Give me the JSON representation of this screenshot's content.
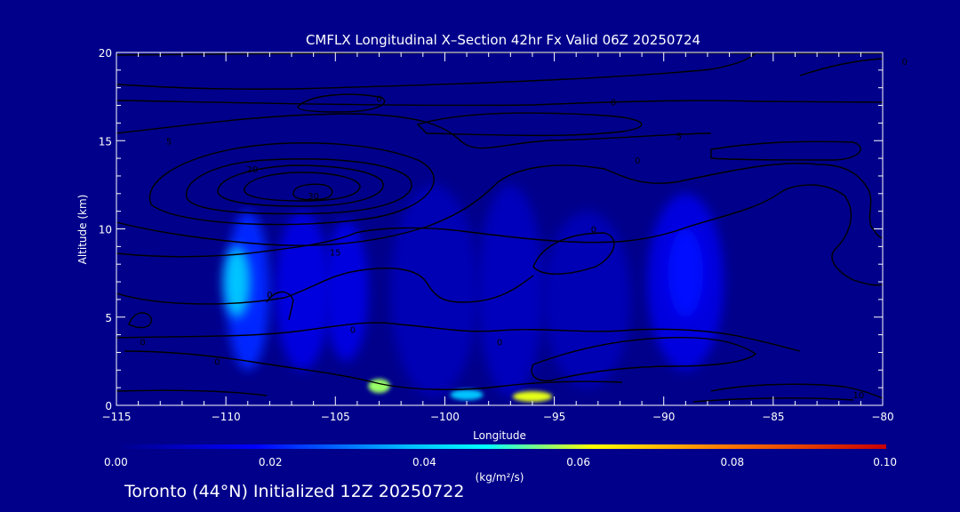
{
  "chart_data": {
    "type": "contour",
    "title": "CMFLX Longitudinal X–Section 42hr  Fx Valid 06Z 20250724",
    "xlabel": "Longitude",
    "ylabel": "Altitude (km)",
    "xlim": [
      -115,
      -80
    ],
    "ylim": [
      0,
      20
    ],
    "x_ticks": [
      -115,
      -110,
      -105,
      -100,
      -95,
      -90,
      -85,
      -80
    ],
    "x_tick_labels": [
      "−115",
      "−110",
      "−105",
      "−100",
      "−95",
      "−90",
      "−85",
      "−80"
    ],
    "y_ticks": [
      0,
      5,
      10,
      15,
      20
    ],
    "y_tick_labels": [
      "0",
      "5",
      "10",
      "15",
      "20"
    ],
    "filled_field": {
      "name": "CMFLX",
      "units": "(kg/m²/s)",
      "colorbar_ticks": [
        0.0,
        0.02,
        0.04,
        0.06,
        0.08,
        0.1
      ],
      "colorbar_labels": [
        "0.00",
        "0.02",
        "0.04",
        "0.06",
        "0.08",
        "0.10"
      ],
      "colormap": [
        "#00008b",
        "#0000ff",
        "#00bfff",
        "#00ffff",
        "#ffff00",
        "#ff8000",
        "#c80000"
      ],
      "features": [
        {
          "lon": -109.5,
          "alt": 7.0,
          "value": 0.035,
          "w": 1.2,
          "h": 4.0
        },
        {
          "lon": -109.0,
          "alt": 6.5,
          "value": 0.02,
          "w": 2.0,
          "h": 9.0
        },
        {
          "lon": -106.5,
          "alt": 6.5,
          "value": 0.012,
          "w": 2.5,
          "h": 9.0
        },
        {
          "lon": -104.5,
          "alt": 6.5,
          "value": 0.012,
          "w": 2.0,
          "h": 8.0
        },
        {
          "lon": -100.5,
          "alt": 6.5,
          "value": 0.006,
          "w": 4.0,
          "h": 12.0
        },
        {
          "lon": -97.0,
          "alt": 6.5,
          "value": 0.007,
          "w": 3.0,
          "h": 12.0
        },
        {
          "lon": -93.5,
          "alt": 6.0,
          "value": 0.006,
          "w": 4.0,
          "h": 10.0
        },
        {
          "lon": -89.0,
          "alt": 7.0,
          "value": 0.012,
          "w": 3.5,
          "h": 10.0
        },
        {
          "lon": -89.0,
          "alt": 7.5,
          "value": 0.018,
          "w": 1.6,
          "h": 5.0
        },
        {
          "lon": -103.0,
          "alt": 1.1,
          "value": 0.06,
          "w": 1.0,
          "h": 0.8
        },
        {
          "lon": -99.0,
          "alt": 0.6,
          "value": 0.035,
          "w": 1.5,
          "h": 0.6
        },
        {
          "lon": -96.0,
          "alt": 0.5,
          "value": 0.065,
          "w": 1.8,
          "h": 0.6
        }
      ]
    },
    "contours": {
      "levels": [
        0,
        5,
        10,
        15,
        20,
        30
      ],
      "labels": [
        {
          "text": "0",
          "lon": -103.0,
          "alt": 17.4
        },
        {
          "text": "0",
          "lon": -92.3,
          "alt": 17.2
        },
        {
          "text": "0",
          "lon": -79.0,
          "alt": 19.5
        },
        {
          "text": "5",
          "lon": -89.3,
          "alt": 15.3
        },
        {
          "text": "0",
          "lon": -91.2,
          "alt": 13.9
        },
        {
          "text": "5",
          "lon": -112.6,
          "alt": 15.0
        },
        {
          "text": "20",
          "lon": -108.8,
          "alt": 13.4
        },
        {
          "text": "30",
          "lon": -106.0,
          "alt": 11.9
        },
        {
          "text": "0",
          "lon": -93.2,
          "alt": 10.0
        },
        {
          "text": "15",
          "lon": -105.0,
          "alt": 8.7
        },
        {
          "text": "0",
          "lon": -108.0,
          "alt": 6.3
        },
        {
          "text": "0",
          "lon": -113.8,
          "alt": 3.6
        },
        {
          "text": "0",
          "lon": -104.2,
          "alt": 4.3
        },
        {
          "text": "0",
          "lon": -97.5,
          "alt": 3.6
        },
        {
          "text": "0",
          "lon": -110.4,
          "alt": 2.5
        },
        {
          "text": "10",
          "lon": -81.1,
          "alt": 0.6
        }
      ]
    }
  },
  "footer": "Toronto (44°N) Initialized 12Z 20250722"
}
